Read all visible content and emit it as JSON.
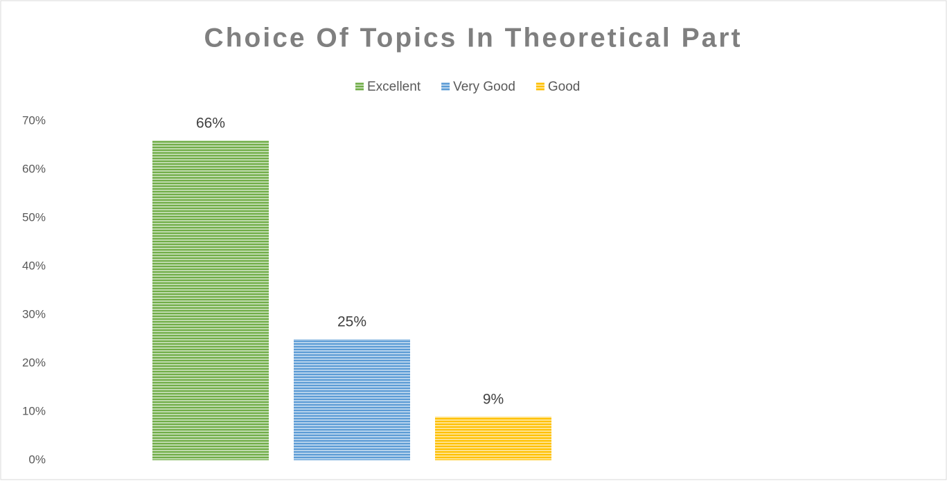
{
  "chart_data": {
    "type": "bar",
    "title": "Choice Of Topics In Theoretical Part",
    "categories": [
      null
    ],
    "series": [
      {
        "name": "Excellent",
        "color": "#70ad47",
        "values": [
          66
        ],
        "value_labels": [
          "66%"
        ]
      },
      {
        "name": "Very Good",
        "color": "#5b9bd5",
        "values": [
          25
        ],
        "value_labels": [
          "25%"
        ]
      },
      {
        "name": "Good",
        "color": "#ffc000",
        "values": [
          9
        ],
        "value_labels": [
          "9%"
        ]
      }
    ],
    "ylim": [
      0,
      70
    ],
    "yticks": [
      {
        "value": 0,
        "label": "0%"
      },
      {
        "value": 10,
        "label": "10%"
      },
      {
        "value": 20,
        "label": "20%"
      },
      {
        "value": 30,
        "label": "30%"
      },
      {
        "value": 40,
        "label": "40%"
      },
      {
        "value": 50,
        "label": "50%"
      },
      {
        "value": 60,
        "label": "60%"
      },
      {
        "value": 70,
        "label": "70%"
      }
    ],
    "grid": false,
    "legend": "top"
  }
}
